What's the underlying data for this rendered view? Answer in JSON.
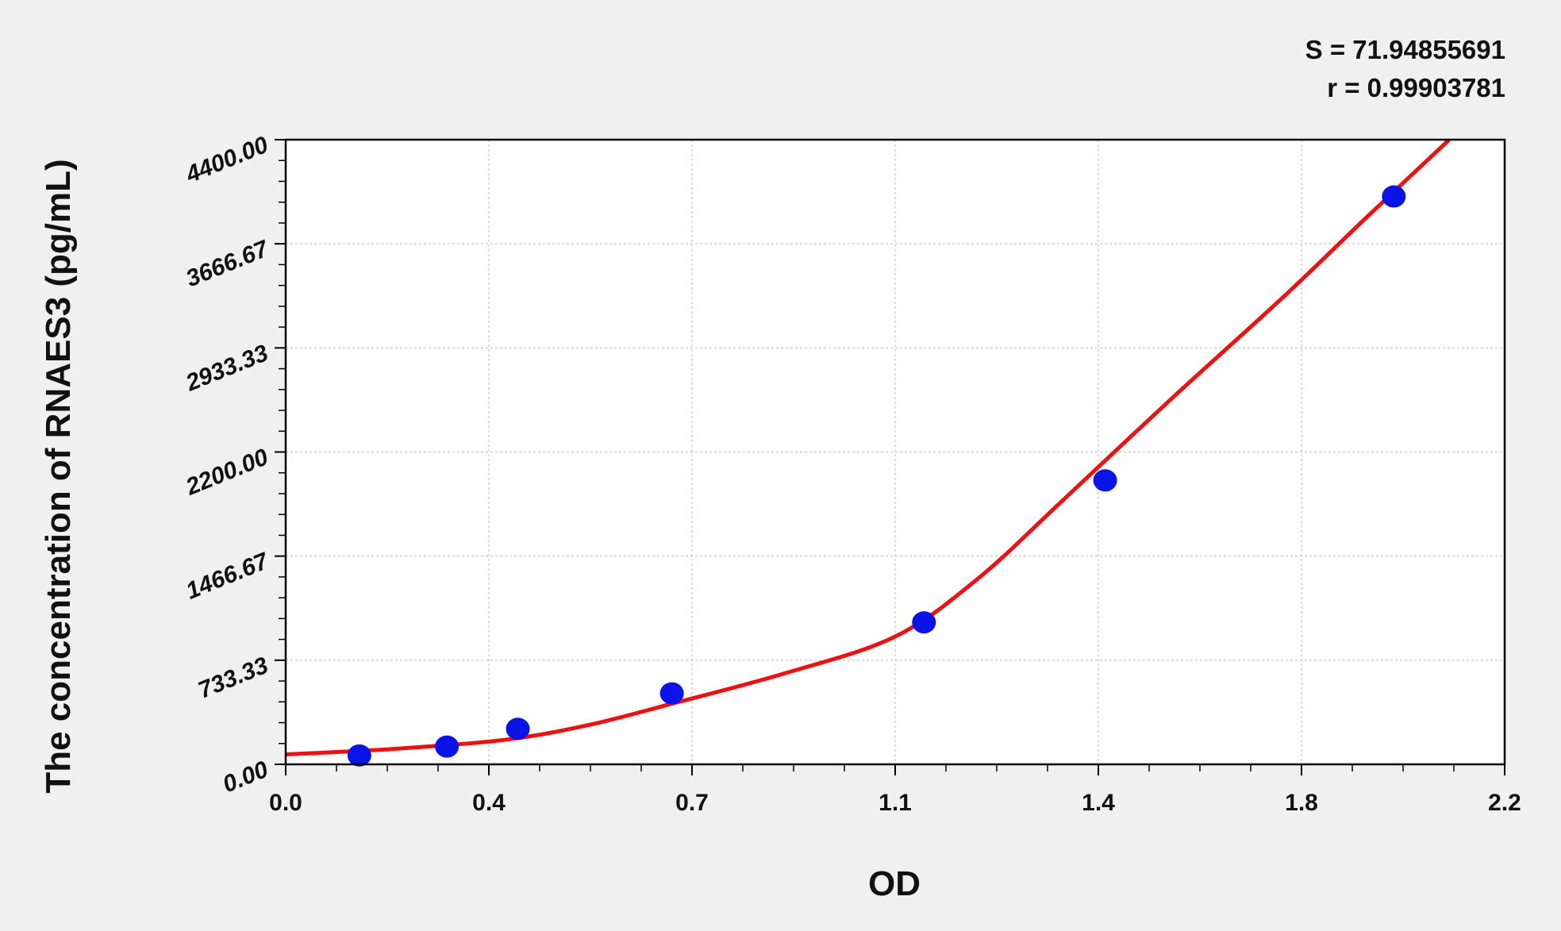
{
  "stats": {
    "s": "S = 71.94855691",
    "r": "r = 0.99903781"
  },
  "chart_data": {
    "type": "scatter",
    "title": "",
    "xlabel": "OD",
    "ylabel": "The concentration of RNAES3 (pg/mL)",
    "xlim": [
      0,
      2.2
    ],
    "ylim": [
      0,
      4400
    ],
    "x_ticks": [
      "0.0",
      "0.4",
      "0.7",
      "1.1",
      "1.4",
      "1.8",
      "2.2"
    ],
    "y_ticks": [
      "0.00",
      "733.33",
      "1466.67",
      "2200.00",
      "2933.33",
      "3666.67",
      "4400.00"
    ],
    "grid": true,
    "points": {
      "color": "#0a14e6",
      "x": [
        0.133,
        0.291,
        0.419,
        0.697,
        1.152,
        1.479,
        2.0
      ],
      "y": [
        62.5,
        125,
        250,
        500,
        1000,
        2000,
        4000
      ]
    },
    "fit_curve": {
      "color": "#ee1111",
      "x": [
        0,
        0.2,
        0.4,
        0.55,
        0.7,
        0.9,
        1.1,
        1.25,
        1.4,
        1.6,
        1.8,
        1.95,
        2.1
      ],
      "y": [
        70,
        110,
        175,
        280,
        430,
        640,
        900,
        1310,
        1850,
        2580,
        3290,
        3850,
        4400
      ]
    }
  }
}
